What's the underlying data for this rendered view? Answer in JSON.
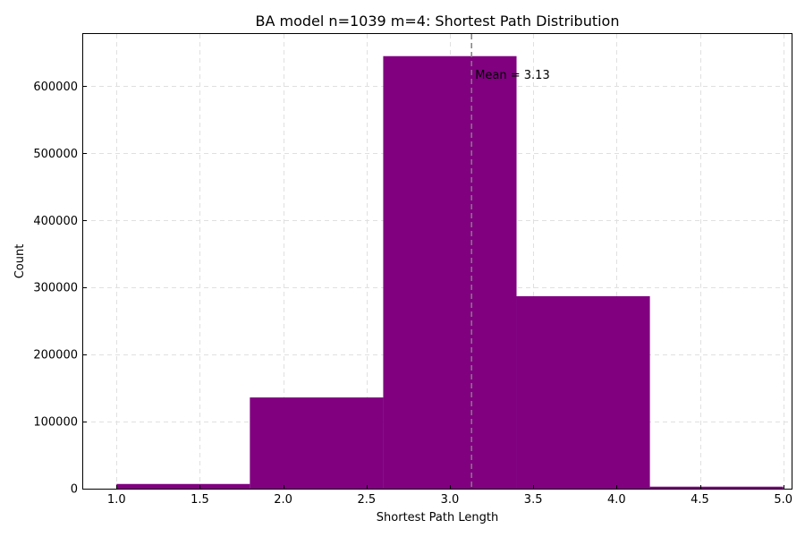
{
  "chart_data": {
    "type": "bar",
    "title": "BA model n=1039 m=4: Shortest Path Distribution",
    "xlabel": "Shortest Path Length",
    "ylabel": "Count",
    "bins": [
      {
        "start": 1.0,
        "end": 1.8,
        "count": 7000
      },
      {
        "start": 1.8,
        "end": 2.6,
        "count": 136000
      },
      {
        "start": 2.6,
        "end": 3.4,
        "count": 645000
      },
      {
        "start": 3.4,
        "end": 4.2,
        "count": 287000
      },
      {
        "start": 4.2,
        "end": 5.0,
        "count": 3000
      }
    ],
    "xlim": [
      0.8,
      5.05
    ],
    "ylim": [
      0,
      678000
    ],
    "xticks": [
      1.0,
      1.5,
      2.0,
      2.5,
      3.0,
      3.5,
      4.0,
      4.5,
      5.0
    ],
    "xtick_labels": [
      "1.0",
      "1.5",
      "2.0",
      "2.5",
      "3.0",
      "3.5",
      "4.0",
      "4.5",
      "5.0"
    ],
    "yticks": [
      0,
      100000,
      200000,
      300000,
      400000,
      500000,
      600000
    ],
    "ytick_labels": [
      "0",
      "100000",
      "200000",
      "300000",
      "400000",
      "500000",
      "600000"
    ],
    "mean_value": 3.13,
    "mean_label": "Mean = 3.13",
    "grid": true,
    "bar_color": "#800080",
    "mean_line_color": "#808080",
    "grid_color": "#e0e0e0"
  }
}
